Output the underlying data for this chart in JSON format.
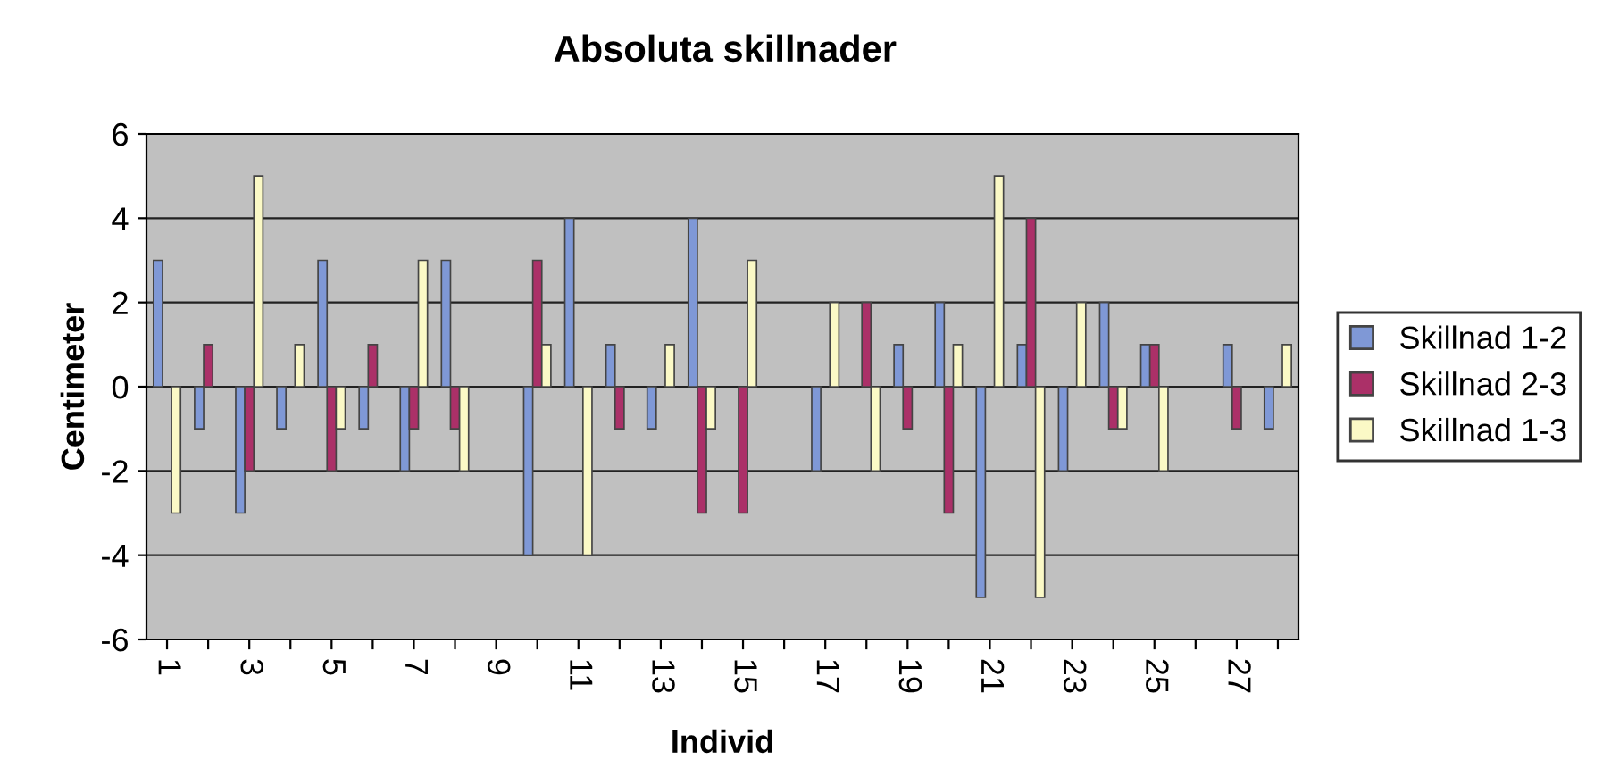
{
  "chart_data": {
    "type": "bar",
    "title": "Absoluta skillnader",
    "xlabel": "Individ",
    "ylabel": "Centimeter",
    "categories": [
      "1",
      null,
      "3",
      null,
      "5",
      null,
      "7",
      null,
      "9",
      null,
      "11",
      null,
      "13",
      null,
      "15",
      null,
      "17",
      null,
      "19",
      null,
      "21",
      null,
      "23",
      null,
      "25",
      null,
      "27",
      null
    ],
    "series": [
      {
        "name": "Skillnad 1-2",
        "color": "#7f98d6",
        "values": [
          3,
          -1,
          -3,
          -1,
          3,
          -1,
          -2,
          3,
          0,
          -4,
          4,
          1,
          -1,
          4,
          0,
          0,
          -2,
          0,
          1,
          2,
          -5,
          1,
          -2,
          2,
          1,
          0,
          1,
          -1
        ]
      },
      {
        "name": "Skillnad 2-3",
        "color": "#ab3068",
        "values": [
          0,
          1,
          -2,
          0,
          -2,
          1,
          -1,
          -1,
          0,
          3,
          0,
          -1,
          0,
          -3,
          -3,
          0,
          0,
          2,
          -1,
          -3,
          0,
          4,
          0,
          -1,
          1,
          0,
          -1,
          0
        ]
      },
      {
        "name": "Skillnad 1-3",
        "color": "#fbf9c6",
        "values": [
          -3,
          0,
          5,
          1,
          -1,
          0,
          3,
          -2,
          0,
          1,
          -4,
          0,
          1,
          -1,
          3,
          0,
          2,
          -2,
          0,
          1,
          5,
          -5,
          2,
          -1,
          -2,
          0,
          0,
          1
        ]
      }
    ],
    "ylim": [
      -6,
      6
    ],
    "yticks": [
      -6,
      -4,
      -2,
      0,
      2,
      4,
      6
    ],
    "grid": "y",
    "legend": "right"
  }
}
